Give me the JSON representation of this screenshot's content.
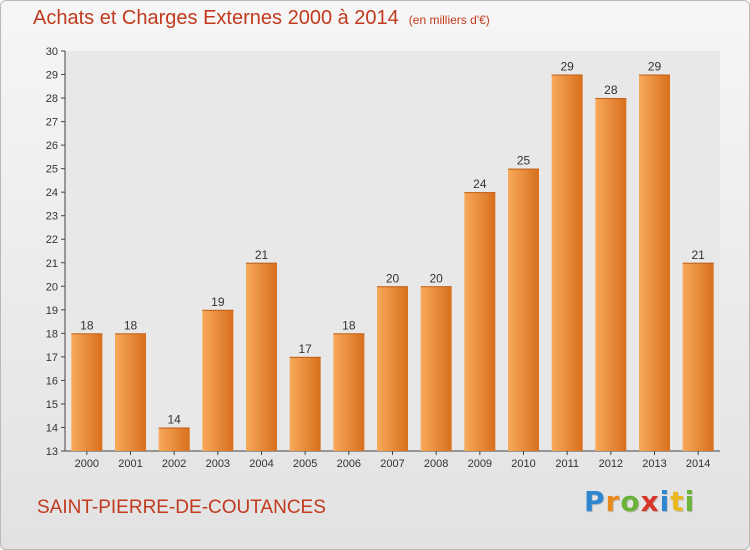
{
  "header": {
    "title": "Achats et Charges Externes 2000 à 2014",
    "subtitle": "(en milliers d'€)"
  },
  "footer": {
    "commune": "SAINT-PIERRE-DE-COUTANCES",
    "logo_text": "Proxiti"
  },
  "colors": {
    "accent": "#c23a1e",
    "bar_light": "#f7a95a",
    "bar_dark": "#d86f1c"
  },
  "chart_data": {
    "type": "bar",
    "title": "Achats et Charges Externes 2000 à 2014",
    "subtitle": "(en milliers d'€)",
    "categories": [
      "2000",
      "2001",
      "2002",
      "2003",
      "2004",
      "2005",
      "2006",
      "2007",
      "2008",
      "2009",
      "2010",
      "2011",
      "2012",
      "2013",
      "2014"
    ],
    "values": [
      18,
      18,
      14,
      19,
      21,
      17,
      18,
      20,
      20,
      24,
      25,
      29,
      28,
      29,
      21
    ],
    "data_labels": [
      "18",
      "18",
      "14",
      "19",
      "21",
      "17",
      "18",
      "20",
      "20",
      "24",
      "25",
      "29",
      "28",
      "29",
      "21"
    ],
    "ylim": [
      13,
      30
    ],
    "yticks": [
      "13",
      "14",
      "15",
      "16",
      "17",
      "18",
      "19",
      "20",
      "21",
      "22",
      "23",
      "24",
      "25",
      "26",
      "27",
      "28",
      "29",
      "30"
    ],
    "grid": false,
    "xlabel": "",
    "ylabel": ""
  }
}
